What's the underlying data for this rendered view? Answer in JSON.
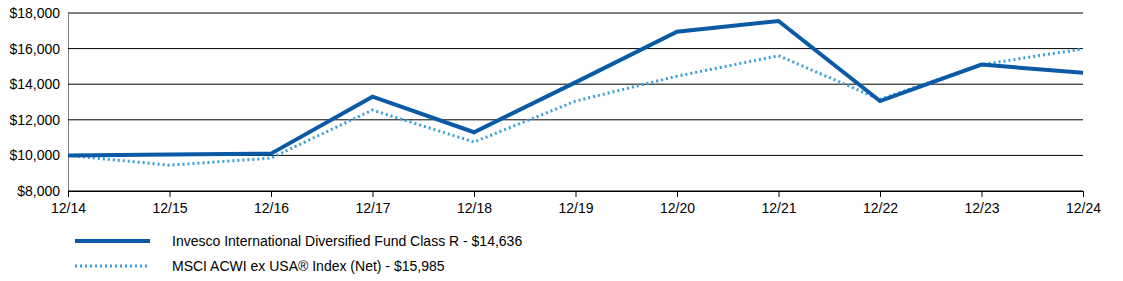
{
  "chart_data": {
    "type": "line",
    "categories": [
      "12/14",
      "12/15",
      "12/16",
      "12/17",
      "12/18",
      "12/19",
      "12/20",
      "12/21",
      "12/22",
      "12/23",
      "12/24"
    ],
    "series": [
      {
        "name": "Invesco International Diversified Fund Class R - $14,636",
        "color": "#0b5aa6",
        "line_style": "solid",
        "values": [
          10000,
          10050,
          10100,
          13300,
          11300,
          14100,
          16950,
          17550,
          13050,
          15100,
          14636
        ]
      },
      {
        "name": "MSCI ACWI ex USA® Index (Net) - $15,985",
        "color": "#3a9fd9",
        "line_style": "dotted",
        "values": [
          10000,
          9450,
          9850,
          12550,
          10750,
          13050,
          14450,
          15600,
          13150,
          15100,
          15985
        ]
      }
    ],
    "ylim": [
      8000,
      18000
    ],
    "yticks": [
      {
        "value": 8000,
        "label": "$8,000"
      },
      {
        "value": 10000,
        "label": "$10,000"
      },
      {
        "value": 12000,
        "label": "$12,000"
      },
      {
        "value": 14000,
        "label": "$14,000"
      },
      {
        "value": 16000,
        "label": "$16,000"
      },
      {
        "value": 18000,
        "label": "$18,000"
      }
    ],
    "grid": true,
    "legend": "bottom"
  }
}
